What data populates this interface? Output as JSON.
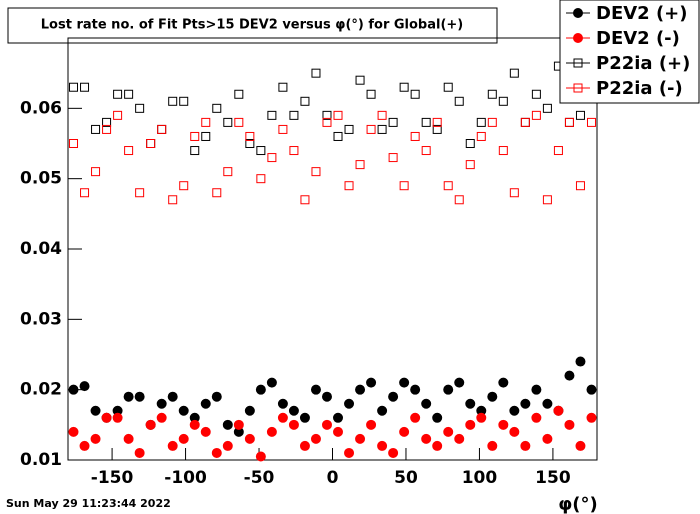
{
  "chart_data": {
    "type": "scatter",
    "title": "Lost rate no. of Fit Pts>15 DEV2 versus φ(°) for Global(+)",
    "x_label": "φ(°)",
    "timestamp": "Sun May 29 11:23:44 2022",
    "xlim": [
      -180,
      180
    ],
    "xticks": [
      -150,
      -100,
      -50,
      0,
      50,
      100,
      150
    ],
    "ylim": [
      0.01,
      0.07
    ],
    "yticks": [
      0.01,
      0.02,
      0.03,
      0.04,
      0.05,
      0.06
    ],
    "legend": "top-right",
    "x": [
      -176.25,
      -168.75,
      -161.25,
      -153.75,
      -146.25,
      -138.75,
      -131.25,
      -123.75,
      -116.25,
      -108.75,
      -101.25,
      -93.75,
      -86.25,
      -78.75,
      -71.25,
      -63.75,
      -56.25,
      -48.75,
      -41.25,
      -33.75,
      -26.25,
      -18.75,
      -11.25,
      -3.75,
      3.75,
      11.25,
      18.75,
      26.25,
      33.75,
      41.25,
      48.75,
      56.25,
      63.75,
      71.25,
      78.75,
      86.25,
      93.75,
      101.25,
      108.75,
      116.25,
      123.75,
      131.25,
      138.75,
      146.25,
      153.75,
      161.25,
      168.75,
      176.25
    ],
    "series": [
      {
        "name": "DEV2 (+)",
        "color": "#000000",
        "marker": "circle",
        "filled": true,
        "values": [
          0.02,
          0.0205,
          0.017,
          0.016,
          0.017,
          0.019,
          0.019,
          0.015,
          0.018,
          0.019,
          0.017,
          0.016,
          0.018,
          0.019,
          0.015,
          0.014,
          0.017,
          0.02,
          0.021,
          0.018,
          0.017,
          0.016,
          0.02,
          0.019,
          0.016,
          0.018,
          0.02,
          0.021,
          0.017,
          0.019,
          0.021,
          0.02,
          0.018,
          0.016,
          0.02,
          0.021,
          0.018,
          0.017,
          0.019,
          0.021,
          0.017,
          0.018,
          0.02,
          0.018,
          0.017,
          0.022,
          0.024,
          0.02
        ]
      },
      {
        "name": "DEV2 (-)",
        "color": "#ff0000",
        "marker": "circle",
        "filled": true,
        "values": [
          0.014,
          0.012,
          0.013,
          0.016,
          0.016,
          0.013,
          0.011,
          0.015,
          0.016,
          0.012,
          0.013,
          0.015,
          0.014,
          0.011,
          0.012,
          0.015,
          0.013,
          0.0105,
          0.014,
          0.016,
          0.015,
          0.012,
          0.013,
          0.015,
          0.014,
          0.011,
          0.013,
          0.015,
          0.012,
          0.011,
          0.014,
          0.016,
          0.013,
          0.012,
          0.014,
          0.013,
          0.015,
          0.016,
          0.012,
          0.015,
          0.014,
          0.012,
          0.016,
          0.013,
          0.017,
          0.015,
          0.012,
          0.016
        ]
      },
      {
        "name": "P22ia (+)",
        "color": "#000000",
        "marker": "square",
        "filled": false,
        "values": [
          0.063,
          0.063,
          0.057,
          0.058,
          0.062,
          0.062,
          0.06,
          0.055,
          0.057,
          0.061,
          0.061,
          0.054,
          0.056,
          0.06,
          0.058,
          0.062,
          0.055,
          0.054,
          0.059,
          0.063,
          0.059,
          0.061,
          0.065,
          0.059,
          0.056,
          0.057,
          0.064,
          0.062,
          0.057,
          0.058,
          0.063,
          0.062,
          0.058,
          0.057,
          0.063,
          0.061,
          0.055,
          0.058,
          0.062,
          0.061,
          0.065,
          0.058,
          0.062,
          0.06,
          0.066,
          0.058,
          0.059,
          0.066
        ]
      },
      {
        "name": "P22ia (-)",
        "color": "#ff0000",
        "marker": "square",
        "filled": false,
        "values": [
          0.055,
          0.048,
          0.051,
          0.057,
          0.059,
          0.054,
          0.048,
          0.055,
          0.057,
          0.047,
          0.049,
          0.056,
          0.058,
          0.048,
          0.051,
          0.058,
          0.056,
          0.05,
          0.053,
          0.057,
          0.054,
          0.047,
          0.051,
          0.058,
          0.059,
          0.049,
          0.052,
          0.057,
          0.059,
          0.053,
          0.049,
          0.056,
          0.054,
          0.058,
          0.049,
          0.047,
          0.052,
          0.056,
          0.058,
          0.054,
          0.048,
          0.058,
          0.059,
          0.047,
          0.054,
          0.058,
          0.049,
          0.058
        ]
      }
    ]
  }
}
